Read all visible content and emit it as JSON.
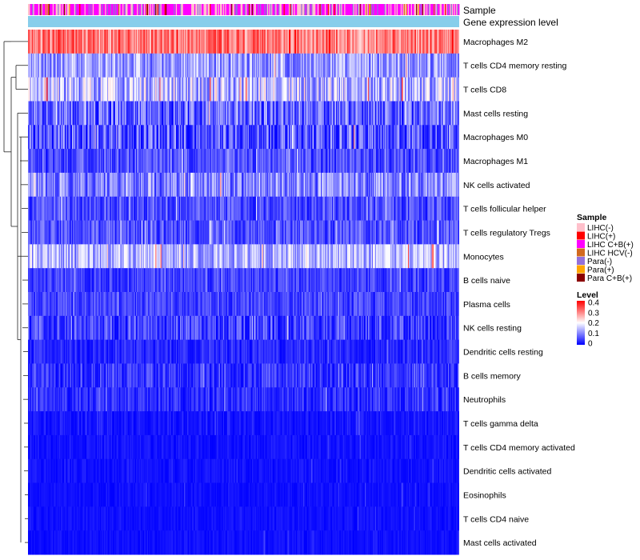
{
  "chart_data": {
    "type": "heatmap",
    "title": "",
    "annotation_tracks": [
      {
        "label": "Sample"
      },
      {
        "label": "Gene expression level"
      }
    ],
    "rows": [
      {
        "name": "Macrophages M2",
        "mean": 0.3,
        "spread": 0.07,
        "minimum": 0.18
      },
      {
        "name": "T cells CD4 memory resting",
        "mean": 0.12,
        "spread": 0.07,
        "minimum": 0.0
      },
      {
        "name": "T cells CD8",
        "mean": 0.15,
        "spread": 0.09,
        "minimum": 0.0
      },
      {
        "name": "Mast cells resting",
        "mean": 0.08,
        "spread": 0.08,
        "minimum": 0.0
      },
      {
        "name": "Macrophages M0",
        "mean": 0.06,
        "spread": 0.09,
        "minimum": 0.0
      },
      {
        "name": "Macrophages M1",
        "mean": 0.06,
        "spread": 0.05,
        "minimum": 0.0
      },
      {
        "name": "NK cells activated",
        "mean": 0.1,
        "spread": 0.07,
        "minimum": 0.0
      },
      {
        "name": "T cells follicular helper",
        "mean": 0.06,
        "spread": 0.05,
        "minimum": 0.0
      },
      {
        "name": "T cells regulatory  Tregs",
        "mean": 0.06,
        "spread": 0.05,
        "minimum": 0.0
      },
      {
        "name": "Monocytes",
        "mean": 0.14,
        "spread": 0.07,
        "minimum": 0.0
      },
      {
        "name": "B cells naive",
        "mean": 0.05,
        "spread": 0.04,
        "minimum": 0.0
      },
      {
        "name": "Plasma cells",
        "mean": 0.05,
        "spread": 0.04,
        "minimum": 0.0
      },
      {
        "name": "NK cells resting",
        "mean": 0.05,
        "spread": 0.06,
        "minimum": 0.0
      },
      {
        "name": "Dendritic cells resting",
        "mean": 0.03,
        "spread": 0.03,
        "minimum": 0.0
      },
      {
        "name": "B cells memory",
        "mean": 0.04,
        "spread": 0.05,
        "minimum": 0.0
      },
      {
        "name": "Neutrophils",
        "mean": 0.03,
        "spread": 0.04,
        "minimum": 0.0
      },
      {
        "name": "T cells gamma delta",
        "mean": 0.01,
        "spread": 0.03,
        "minimum": 0.0
      },
      {
        "name": "T cells CD4 memory activated",
        "mean": 0.01,
        "spread": 0.02,
        "minimum": 0.0
      },
      {
        "name": "Dendritic cells activated",
        "mean": 0.01,
        "spread": 0.02,
        "minimum": 0.0
      },
      {
        "name": "Eosinophils",
        "mean": 0.005,
        "spread": 0.02,
        "minimum": 0.0
      },
      {
        "name": "T cells CD4 naive",
        "mean": 0.005,
        "spread": 0.02,
        "minimum": 0.0
      },
      {
        "name": "Mast cells activated",
        "mean": 0.005,
        "spread": 0.02,
        "minimum": 0.0
      }
    ],
    "n_samples": 420,
    "color_scale": {
      "min": 0,
      "max": 0.4,
      "stops": [
        {
          "value": 0,
          "color": "#0000ff"
        },
        {
          "value": 0.2,
          "color": "#ffffff"
        },
        {
          "value": 0.4,
          "color": "#ff0000"
        }
      ]
    },
    "sample_annotation_weights": [
      0.33,
      0.02,
      0.47,
      0.01,
      0.12,
      0.01,
      0.04
    ],
    "legends": {
      "sample": {
        "title": "Sample",
        "items": [
          {
            "label": "LIHC(-)",
            "color": "#ffc0cb"
          },
          {
            "label": "LIHC(+)",
            "color": "#ff0000"
          },
          {
            "label": "LIHC C+B(+)",
            "color": "#ff00ff"
          },
          {
            "label": "LIHC HCV(-)",
            "color": "#d2691e"
          },
          {
            "label": "Para(-)",
            "color": "#9370db"
          },
          {
            "label": "Para(+)",
            "color": "#ffa500"
          },
          {
            "label": "Para C+B(+)",
            "color": "#8b0000"
          }
        ]
      },
      "level": {
        "title": "Level",
        "ticks": [
          {
            "value": 0.4,
            "label": "0.4"
          },
          {
            "value": 0.3,
            "label": "0.3"
          },
          {
            "value": 0.2,
            "label": "0.2"
          },
          {
            "value": 0.1,
            "label": "0.1"
          },
          {
            "value": 0,
            "label": "0"
          }
        ]
      }
    },
    "gene_expression_track_color": "#87ceeb"
  }
}
